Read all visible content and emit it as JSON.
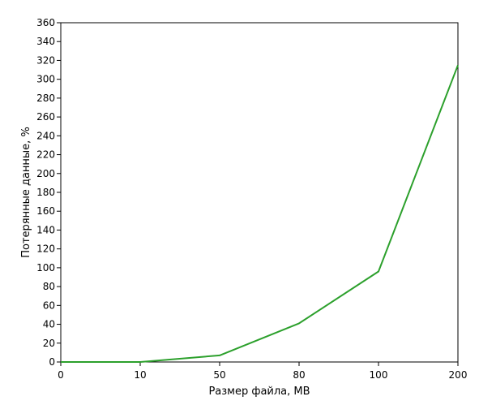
{
  "chart_data": {
    "type": "line",
    "categories": [
      "0",
      "10",
      "50",
      "80",
      "100",
      "200"
    ],
    "series": [
      {
        "values": [
          0,
          0,
          7,
          41,
          96,
          315
        ]
      }
    ],
    "xlabel": "Размер файла, МВ",
    "ylabel": "Потерянные данные, %",
    "ylim": [
      0,
      360
    ],
    "yticks": [
      0,
      20,
      40,
      60,
      80,
      100,
      120,
      140,
      160,
      180,
      200,
      220,
      240,
      260,
      280,
      300,
      320,
      340,
      360
    ],
    "grid": false,
    "line_color": "#2ca02c"
  }
}
